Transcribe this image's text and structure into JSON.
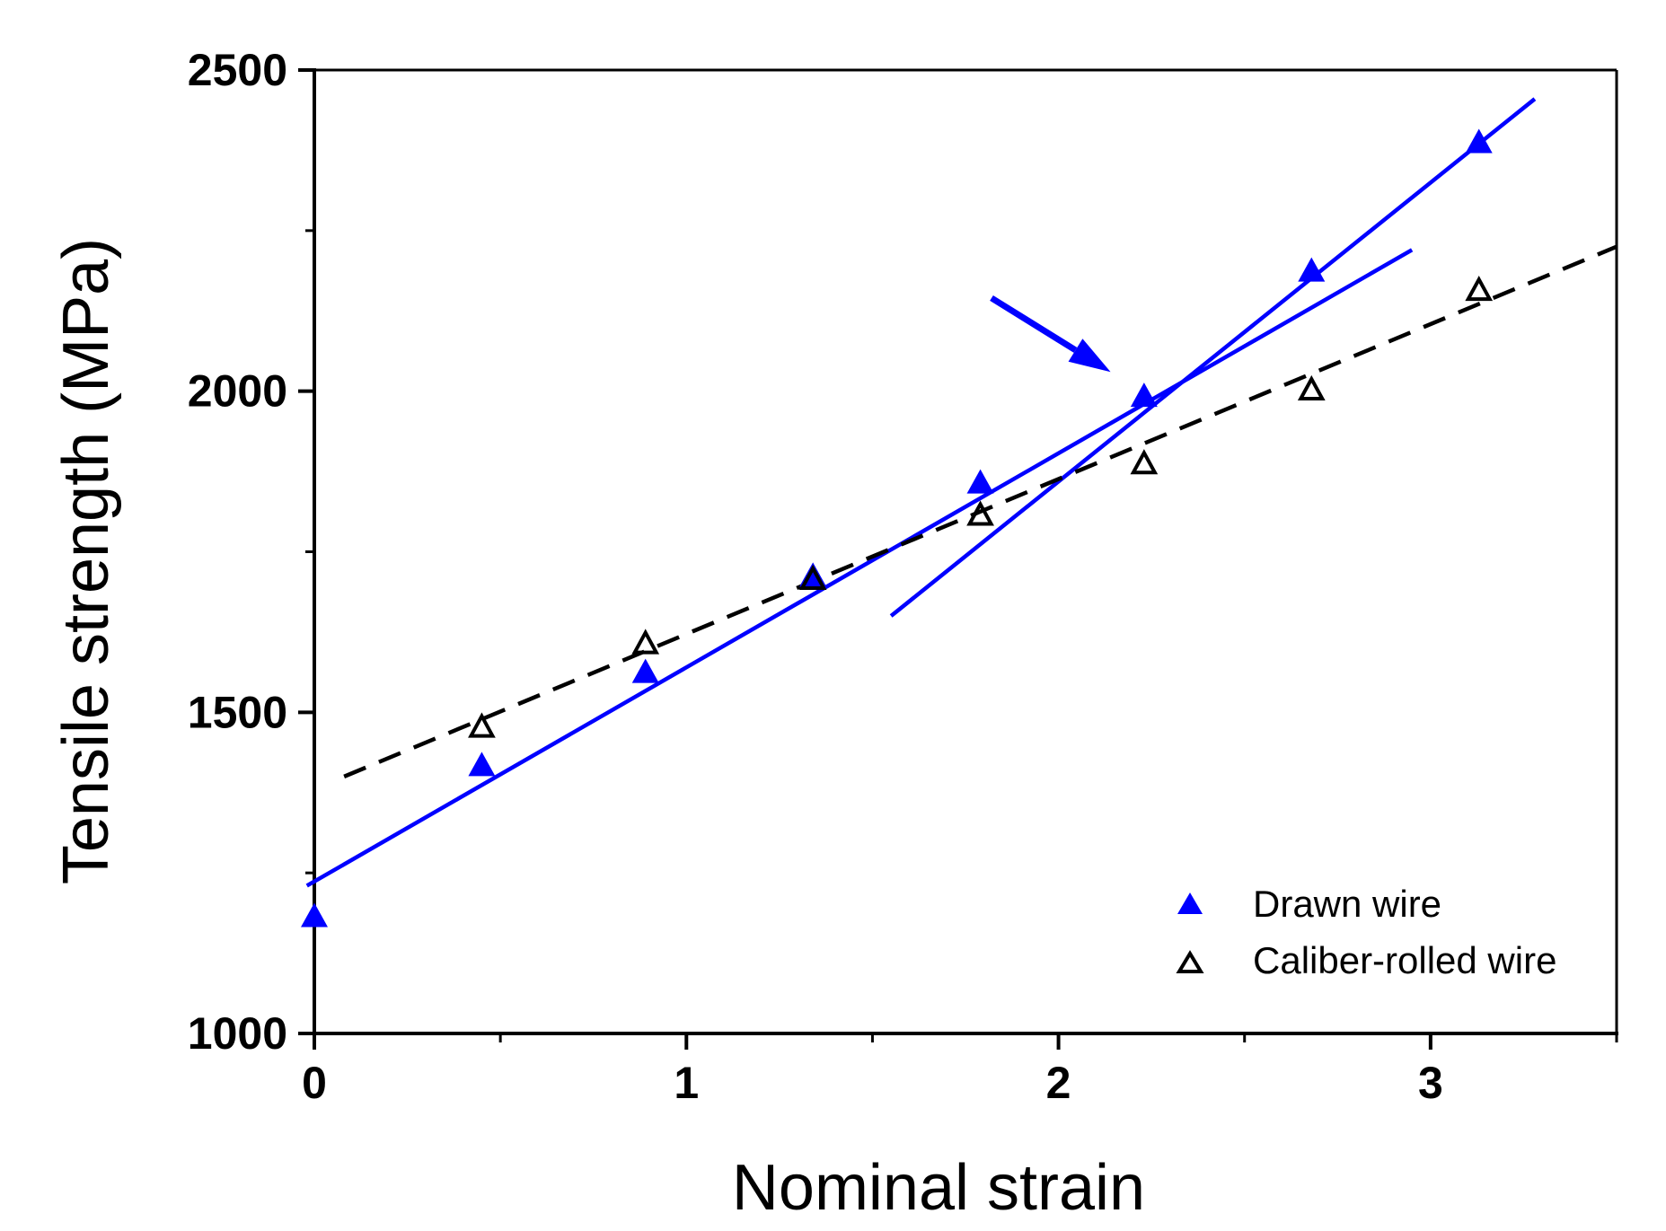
{
  "chart_data": {
    "type": "scatter",
    "title": "",
    "xlabel": "Nominal strain",
    "ylabel": "Tensile strength (MPa)",
    "xlim": [
      0,
      3.5
    ],
    "ylim": [
      1000,
      2500
    ],
    "x_ticks": [
      {
        "value": 0,
        "label": "0"
      },
      {
        "value": 1,
        "label": "1"
      },
      {
        "value": 2,
        "label": "2"
      },
      {
        "value": 3,
        "label": "3"
      }
    ],
    "x_minor_ticks": [
      0.5,
      1.5,
      2.5,
      3.5
    ],
    "y_ticks": [
      {
        "value": 1000,
        "label": "1000"
      },
      {
        "value": 1500,
        "label": "1500"
      },
      {
        "value": 2000,
        "label": "2000"
      },
      {
        "value": 2500,
        "label": "2500"
      }
    ],
    "y_minor_ticks": [
      1250,
      1750,
      2250
    ],
    "grid": false,
    "legend_position": "bottom-right",
    "series": [
      {
        "name": "Drawn wire",
        "marker": "filled-triangle",
        "color": "#0000ff",
        "x": [
          0.0,
          0.45,
          0.89,
          1.34,
          1.79,
          2.23,
          2.68,
          3.13
        ],
        "y": [
          1180,
          1415,
          1560,
          1710,
          1855,
          1990,
          2185,
          2385
        ]
      },
      {
        "name": "Caliber-rolled wire",
        "marker": "open-triangle",
        "color": "#000000",
        "x": [
          0.45,
          0.89,
          1.34,
          1.79,
          2.23,
          2.68,
          3.13
        ],
        "y": [
          1475,
          1605,
          1705,
          1805,
          1885,
          2000,
          2155
        ]
      }
    ],
    "fit_lines": [
      {
        "name": "Drawn wire fit (low strain)",
        "style": "solid",
        "color": "#0000ff",
        "x": [
          -0.02,
          2.95
        ],
        "y": [
          1230,
          2220
        ]
      },
      {
        "name": "Drawn wire fit (high strain)",
        "style": "solid",
        "color": "#0000ff",
        "x": [
          1.55,
          3.28
        ],
        "y": [
          1650,
          2455
        ]
      },
      {
        "name": "Caliber-rolled wire fit",
        "style": "dashed",
        "color": "#000000",
        "x": [
          0.08,
          3.5
        ],
        "y": [
          1400,
          2225
        ]
      }
    ],
    "annotations": [
      {
        "type": "arrow",
        "color": "#0000ff",
        "from": [
          1.82,
          2145
        ],
        "to": [
          2.14,
          2030
        ],
        "meaning": "intersection of the two drawn-wire fit lines"
      }
    ]
  }
}
